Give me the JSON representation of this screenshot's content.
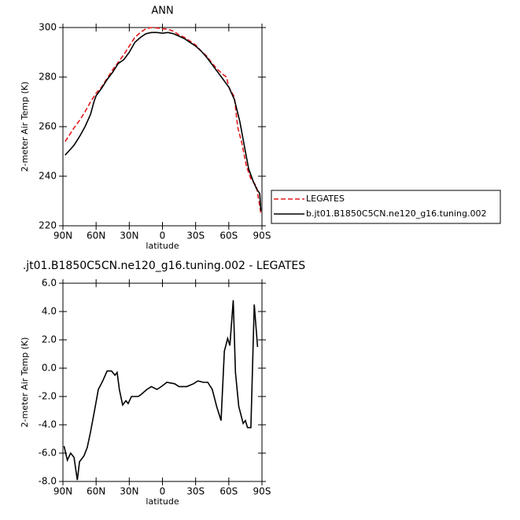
{
  "chart_data": [
    {
      "type": "line",
      "title": "ANN",
      "ylabel": "2-meter Air Temp (K)",
      "xlabel": "latitude",
      "xlim": [
        90,
        -90
      ],
      "xticks": [
        {
          "value": 90,
          "label": "90N"
        },
        {
          "value": 60,
          "label": "60N"
        },
        {
          "value": 30,
          "label": "30N"
        },
        0,
        {
          "value": -30,
          "label": "30S"
        },
        {
          "value": -60,
          "label": "60S"
        },
        {
          "value": -90,
          "label": "90S"
        }
      ],
      "ylim": [
        220,
        300
      ],
      "yticks": [
        220,
        240,
        260,
        280,
        300
      ],
      "legend": true,
      "series": [
        {
          "name": "LEGATES",
          "color": "#e41a1c",
          "dash": true,
          "x": [
            88,
            85,
            80,
            75,
            70,
            65,
            60,
            55,
            50,
            45,
            40,
            35,
            30,
            25,
            20,
            15,
            10,
            5,
            0,
            -5,
            -10,
            -15,
            -20,
            -25,
            -30,
            -35,
            -40,
            -45,
            -50,
            -55,
            -58,
            -60,
            -65,
            -68,
            -72,
            -76,
            -80,
            -85,
            -88,
            -89
          ],
          "values": [
            254,
            256,
            259.5,
            262.5,
            266,
            270,
            273.5,
            276,
            279.5,
            283,
            286,
            289,
            292.5,
            296,
            298,
            299.5,
            300,
            299.8,
            299.5,
            299.3,
            298.5,
            297,
            296,
            294.5,
            293,
            290.5,
            288.5,
            285.5,
            283,
            281,
            280,
            276,
            272,
            260,
            253,
            244,
            239,
            236,
            228,
            225
          ]
        },
        {
          "name": "b.jt01.B1850C5CN.ne120_g16.tuning.002",
          "color": "#000000",
          "dash": false,
          "x": [
            88,
            85,
            80,
            75,
            70,
            65,
            62,
            60,
            55,
            50,
            45,
            40,
            35,
            30,
            25,
            20,
            15,
            10,
            5,
            0,
            -5,
            -10,
            -15,
            -20,
            -25,
            -30,
            -35,
            -40,
            -45,
            -50,
            -55,
            -60,
            -65,
            -70,
            -75,
            -78,
            -82,
            -85,
            -88,
            -89
          ],
          "values": [
            248.5,
            250,
            252.5,
            256,
            260,
            265,
            270,
            272.5,
            275.5,
            279,
            282,
            285.5,
            287,
            290,
            294,
            296,
            297.5,
            298,
            298,
            297.7,
            298,
            297.5,
            296.5,
            295.5,
            294,
            292.5,
            290.5,
            288,
            285,
            282,
            279,
            276,
            271,
            262,
            250,
            243,
            238,
            235,
            233,
            226
          ]
        }
      ]
    },
    {
      "type": "line",
      "title": ".jt01.B1850C5CN.ne120_g16.tuning.002 - LEGATES",
      "ylabel": "2-meter Air Temp (K)",
      "xlabel": "latitude",
      "xlim": [
        90,
        -90
      ],
      "xticks": [
        {
          "value": 90,
          "label": "90N"
        },
        {
          "value": 60,
          "label": "60N"
        },
        {
          "value": 30,
          "label": "30N"
        },
        0,
        {
          "value": -30,
          "label": "30S"
        },
        {
          "value": -60,
          "label": "60S"
        },
        {
          "value": -90,
          "label": "90S"
        }
      ],
      "ylim": [
        -8,
        6
      ],
      "yticks": [
        {
          "value": -8,
          "label": "-8.0"
        },
        {
          "value": -6,
          "label": "-6.0"
        },
        {
          "value": -4,
          "label": "-4.0"
        },
        {
          "value": -2,
          "label": "-2.0"
        },
        {
          "value": 0,
          "label": "0.0"
        },
        {
          "value": 2,
          "label": "2.0"
        },
        {
          "value": 4,
          "label": "4.0"
        },
        {
          "value": 6,
          "label": "6.0"
        }
      ],
      "legend": false,
      "series": [
        {
          "color": "#000000",
          "dash": false,
          "x": [
            89,
            86,
            83,
            80,
            77,
            75,
            71,
            68,
            65,
            61,
            58,
            54,
            50,
            46,
            43,
            41,
            39,
            36,
            33,
            31,
            28,
            22,
            20,
            14,
            10,
            5,
            1,
            -4,
            -11,
            -15,
            -22,
            -28,
            -32,
            -37,
            -41,
            -45,
            -49,
            -53,
            -56,
            -59,
            -61,
            -64,
            -66,
            -69,
            -73,
            -75,
            -77,
            -80,
            -83,
            -86
          ],
          "values": [
            -5.5,
            -6.5,
            -6,
            -6.3,
            -7.9,
            -6.6,
            -6.2,
            -5.6,
            -4.5,
            -2.8,
            -1.5,
            -0.9,
            -0.2,
            -0.2,
            -0.5,
            -0.3,
            -1.5,
            -2.6,
            -2.3,
            -2.5,
            -2,
            -2,
            -1.9,
            -1.5,
            -1.3,
            -1.5,
            -1.3,
            -1,
            -1.1,
            -1.3,
            -1.3,
            -1.1,
            -0.9,
            -1,
            -1,
            -1.5,
            -2.7,
            -3.7,
            1.2,
            2.1,
            1.6,
            4.8,
            -0.3,
            -2.7,
            -3.9,
            -3.7,
            -4.2,
            -4.2,
            4.5,
            1.5
          ]
        }
      ]
    }
  ]
}
